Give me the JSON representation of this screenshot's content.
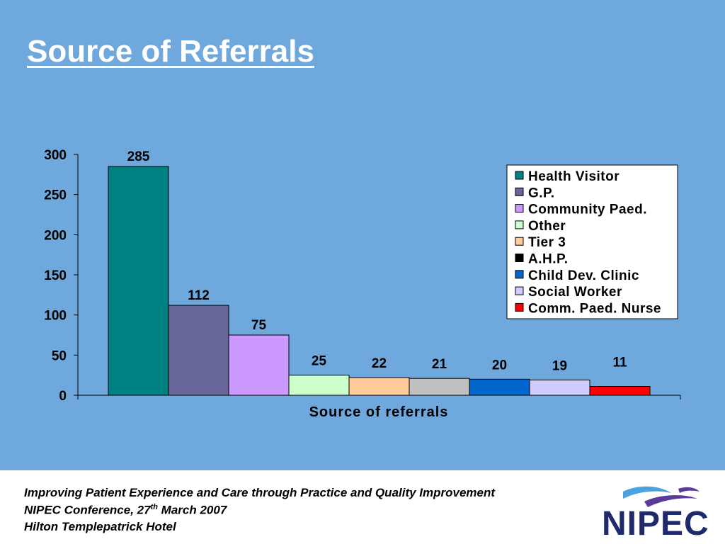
{
  "slide": {
    "title": "Source of Referrals"
  },
  "chart_data": {
    "type": "bar",
    "title": "",
    "xlabel": "Source of referrals",
    "ylabel": "",
    "ylim": [
      0,
      300
    ],
    "yticks": [
      0,
      50,
      100,
      150,
      200,
      250,
      300
    ],
    "grid": false,
    "legend_position": "top-right",
    "series": [
      {
        "name": "Health Visitor",
        "value": 285,
        "color": "#008080"
      },
      {
        "name": "G.P.",
        "value": 112,
        "color": "#666699"
      },
      {
        "name": "Community Paed.",
        "value": 75,
        "color": "#cc99ff"
      },
      {
        "name": "Other",
        "value": 25,
        "color": "#ccffcc"
      },
      {
        "name": "Tier 3",
        "value": 22,
        "color": "#ffcc99"
      },
      {
        "name": "A.H.P.",
        "value": 21,
        "color": "#000000",
        "bar_color": "#c0c0c0"
      },
      {
        "name": "Child Dev. Clinic",
        "value": 20,
        "color": "#0066cc"
      },
      {
        "name": "Social Worker",
        "value": 19,
        "color": "#ccccff"
      },
      {
        "name": "Comm. Paed. Nurse",
        "value": 11,
        "color": "#ff0000"
      }
    ]
  },
  "footer": {
    "line1": "Improving Patient Experience and Care through Practice and Quality Improvement",
    "line2_prefix": "NIPEC Conference, 27",
    "line2_sup": "th",
    "line2_suffix": " March 2007",
    "line3": "Hilton Templepatrick Hotel"
  },
  "logo": {
    "text": "NIPEC",
    "colors": {
      "text": "#1f2a6b",
      "swoosh_blue": "#4aa3df",
      "swoosh_purple": "#5b3a99"
    }
  }
}
